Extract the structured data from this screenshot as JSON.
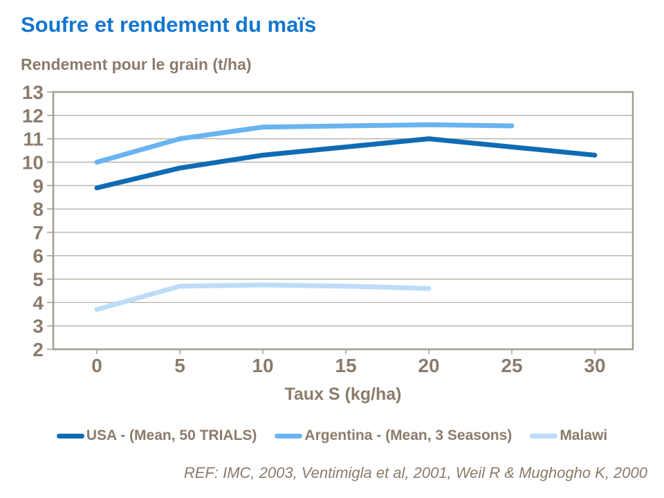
{
  "chart_data": {
    "type": "line",
    "title": "Soufre et rendement du maïs",
    "ylabel": "Rendement pour le grain (t/ha)",
    "xlabel": "Taux S (kg/ha)",
    "ylim": [
      2,
      13
    ],
    "y_ticks": [
      2,
      3,
      4,
      5,
      6,
      7,
      8,
      9,
      10,
      11,
      12,
      13
    ],
    "x_ticks": [
      0,
      5,
      10,
      15,
      20,
      25,
      30
    ],
    "grid": "horizontal",
    "legend_position": "bottom",
    "series": [
      {
        "name": "USA - (Mean, 50 TRIALS)",
        "color": "#0F6BB4",
        "x": [
          0,
          5,
          10,
          15,
          20,
          25,
          30
        ],
        "values": [
          8.9,
          9.75,
          10.3,
          10.65,
          11.0,
          10.65,
          10.3
        ]
      },
      {
        "name": "Argentina - (Mean, 3 Seasons)",
        "color": "#69B4F0",
        "x": [
          0,
          5,
          10,
          15,
          20,
          25
        ],
        "values": [
          10.0,
          11.0,
          11.5,
          11.55,
          11.6,
          11.55
        ]
      },
      {
        "name": "Malawi",
        "color": "#BEDCF8",
        "x": [
          0,
          5,
          10,
          15,
          20
        ],
        "values": [
          3.7,
          4.7,
          4.75,
          4.7,
          4.6
        ]
      }
    ]
  },
  "footer": {
    "reference": "REF: IMC,  2003, Ventimigla et al, 2001, Weil R & Mughogho K, 2000"
  },
  "colors": {
    "title_text": "#1376CF",
    "axis_text": "#8B7B6B",
    "frame": "#A49C93",
    "gridline": "#B4ABA0",
    "background": "#FFFFFF"
  }
}
